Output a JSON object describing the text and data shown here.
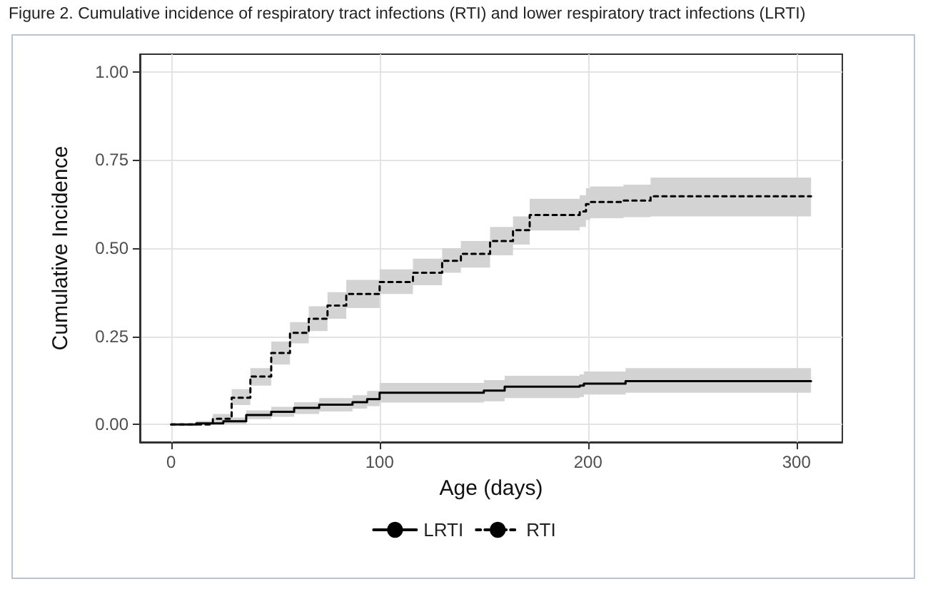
{
  "chart_data": {
    "type": "step",
    "title": "Figure 2. Cumulative incidence of respiratory tract infections (RTI) and lower respiratory tract infections (LRTI)",
    "xlabel": "Age (days)",
    "ylabel": "Cumulative Incidence",
    "xlim": [
      -15,
      322
    ],
    "xticks": [
      0,
      100,
      200,
      300
    ],
    "ylim": [
      -0.05,
      1.05
    ],
    "yticks": [
      {
        "value": 0,
        "label": "0.00"
      },
      {
        "value": 0.25,
        "label": "0.25"
      },
      {
        "value": 0.5,
        "label": "0.50"
      },
      {
        "value": 0.75,
        "label": "0.75"
      },
      {
        "value": 1,
        "label": "1.00"
      }
    ],
    "grid": true,
    "legend": "bottom",
    "marker": "none",
    "series": [
      {
        "name": "LRTI",
        "color": "#000000",
        "line_style": "solid",
        "x": [
          0,
          12,
          25,
          36,
          48,
          59,
          71,
          87,
          94,
          100,
          150,
          160,
          196,
          198,
          218,
          307
        ],
        "values": [
          0,
          0.003,
          0.009,
          0.027,
          0.036,
          0.047,
          0.056,
          0.063,
          0.072,
          0.09,
          0.096,
          0.107,
          0.11,
          0.116,
          0.123,
          0.123
        ],
        "lower": [
          0,
          0,
          0,
          0.015,
          0.022,
          0.03,
          0.037,
          0.045,
          0.052,
          0.062,
          0.066,
          0.075,
          0.078,
          0.085,
          0.09,
          0.09
        ],
        "upper": [
          0,
          0.01,
          0.02,
          0.04,
          0.05,
          0.063,
          0.075,
          0.083,
          0.095,
          0.118,
          0.126,
          0.138,
          0.142,
          0.15,
          0.16,
          0.16
        ]
      },
      {
        "name": "RTI",
        "color": "#000000",
        "line_style": "dashed",
        "x": [
          0,
          12,
          20,
          29,
          38,
          48,
          57,
          66,
          75,
          84,
          100,
          116,
          130,
          139,
          153,
          164,
          172,
          196,
          199,
          201,
          217,
          230,
          307
        ],
        "values": [
          0,
          0,
          0.016,
          0.076,
          0.136,
          0.203,
          0.26,
          0.3,
          0.337,
          0.37,
          0.404,
          0.43,
          0.464,
          0.484,
          0.52,
          0.551,
          0.594,
          0.604,
          0.625,
          0.631,
          0.635,
          0.647,
          0.647
        ],
        "lower": [
          0,
          0,
          0.005,
          0.055,
          0.11,
          0.17,
          0.23,
          0.265,
          0.3,
          0.33,
          0.37,
          0.395,
          0.43,
          0.445,
          0.48,
          0.51,
          0.55,
          0.56,
          0.58,
          0.585,
          0.588,
          0.59,
          0.59
        ],
        "upper": [
          0,
          0,
          0.03,
          0.1,
          0.16,
          0.235,
          0.29,
          0.335,
          0.375,
          0.41,
          0.44,
          0.47,
          0.5,
          0.52,
          0.56,
          0.59,
          0.64,
          0.65,
          0.67,
          0.675,
          0.68,
          0.7,
          0.7
        ]
      }
    ]
  }
}
